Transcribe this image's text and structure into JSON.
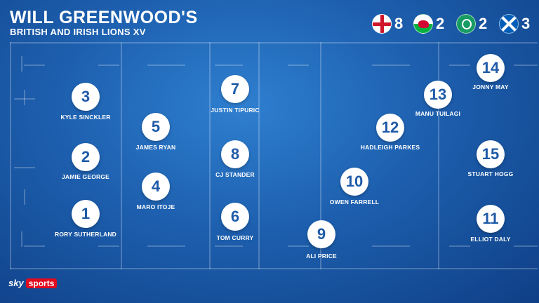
{
  "header": {
    "title": "WILL GREENWOOD'S",
    "subtitle": "BRITISH AND IRISH LIONS XV"
  },
  "nations": [
    {
      "flag": "england-flag",
      "count": "8"
    },
    {
      "flag": "wales-flag",
      "count": "2"
    },
    {
      "flag": "ireland-flag",
      "count": "2"
    },
    {
      "flag": "scotland-flag",
      "count": "3"
    }
  ],
  "players": [
    {
      "number": "1",
      "name": "RORY SUTHERLAND"
    },
    {
      "number": "2",
      "name": "JAMIE GEORGE"
    },
    {
      "number": "3",
      "name": "KYLE SINCKLER"
    },
    {
      "number": "4",
      "name": "MARO ITOJE"
    },
    {
      "number": "5",
      "name": "JAMES RYAN"
    },
    {
      "number": "6",
      "name": "TOM CURRY"
    },
    {
      "number": "7",
      "name": "JUSTIN TIPURIC"
    },
    {
      "number": "8",
      "name": "CJ STANDER"
    },
    {
      "number": "9",
      "name": "ALI PRICE"
    },
    {
      "number": "10",
      "name": "OWEN FARRELL"
    },
    {
      "number": "11",
      "name": "ELLIOT DALY"
    },
    {
      "number": "12",
      "name": "HADLEIGH PARKES"
    },
    {
      "number": "13",
      "name": "MANU TUILAGI"
    },
    {
      "number": "14",
      "name": "JONNY MAY"
    },
    {
      "number": "15",
      "name": "STUART HOGG"
    }
  ],
  "branding": {
    "sky": "sky",
    "sports": "sports"
  },
  "colors": {
    "accent": "#1e5aa8",
    "background": "#1d5fae",
    "brand_red": "#e10a1e"
  }
}
